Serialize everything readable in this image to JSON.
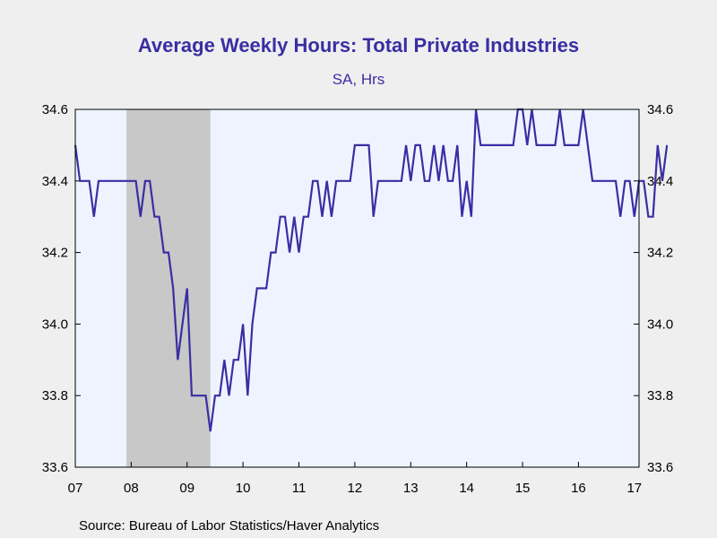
{
  "title": "Average Weekly Hours: Total Private Industries",
  "subtitle": "SA, Hrs",
  "source": "Source:  Bureau of Labor Statistics/Haver Analytics",
  "colors": {
    "line": "#3a2ea3",
    "plot_background": "#eef4ff",
    "recession": "#c8c8c8",
    "title": "#3a2ea3"
  },
  "chart_data": {
    "type": "line",
    "title": "Average Weekly Hours: Total Private Industries",
    "subtitle": "SA, Hrs",
    "xlabel": "",
    "ylabel": "",
    "xlim": [
      "2007-01",
      "2017-02"
    ],
    "ylim": [
      33.6,
      34.6
    ],
    "y_ticks": [
      33.6,
      33.8,
      34.0,
      34.2,
      34.4,
      34.6
    ],
    "y_tick_labels": [
      "33.6",
      "33.8",
      "34.0",
      "34.2",
      "34.4",
      "34.6"
    ],
    "x_tick_labels": [
      "07",
      "08",
      "09",
      "10",
      "11",
      "12",
      "13",
      "14",
      "15",
      "16",
      "17"
    ],
    "y_axis_both_sides": true,
    "grid": false,
    "recession_shading": {
      "start": "2007-12",
      "end": "2009-06"
    },
    "series": [
      {
        "start": "2007-01",
        "frequency": "monthly",
        "values": [
          34.5,
          34.4,
          34.4,
          34.4,
          34.3,
          34.4,
          34.4,
          34.4,
          34.4,
          34.4,
          34.4,
          34.4,
          34.4,
          34.4,
          34.3,
          34.4,
          34.4,
          34.3,
          34.3,
          34.2,
          34.2,
          34.1,
          33.9,
          34.0,
          34.1,
          33.8,
          33.8,
          33.8,
          33.8,
          33.7,
          33.8,
          33.8,
          33.9,
          33.8,
          33.9,
          33.9,
          34.0,
          33.8,
          34.0,
          34.1,
          34.1,
          34.1,
          34.2,
          34.2,
          34.3,
          34.3,
          34.2,
          34.3,
          34.2,
          34.3,
          34.3,
          34.4,
          34.4,
          34.3,
          34.4,
          34.3,
          34.4,
          34.4,
          34.4,
          34.4,
          34.5,
          34.5,
          34.5,
          34.5,
          34.3,
          34.4,
          34.4,
          34.4,
          34.4,
          34.4,
          34.4,
          34.5,
          34.4,
          34.5,
          34.5,
          34.4,
          34.4,
          34.5,
          34.4,
          34.5,
          34.4,
          34.4,
          34.5,
          34.3,
          34.4,
          34.3,
          34.6,
          34.5,
          34.5,
          34.5,
          34.5,
          34.5,
          34.5,
          34.5,
          34.5,
          34.6,
          34.6,
          34.5,
          34.6,
          34.5,
          34.5,
          34.5,
          34.5,
          34.5,
          34.6,
          34.5,
          34.5,
          34.5,
          34.5,
          34.6,
          34.5,
          34.4,
          34.4,
          34.4,
          34.4,
          34.4,
          34.4,
          34.3,
          34.4,
          34.4,
          34.3,
          34.4,
          34.4,
          34.3,
          34.3,
          34.5,
          34.4,
          34.5
        ]
      }
    ]
  }
}
